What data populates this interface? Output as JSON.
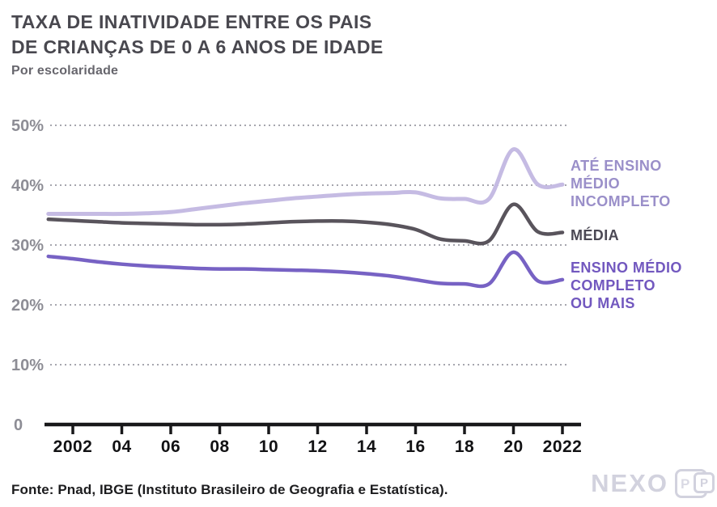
{
  "header": {
    "title": "TAXA DE INATIVIDADE ENTRE OS PAIS\nDE CRIANÇAS DE 0 A 6 ANOS DE IDADE",
    "subtitle": "Por escolaridade"
  },
  "chart_data": {
    "type": "line",
    "x": [
      2001,
      2002,
      2003,
      2004,
      2005,
      2006,
      2007,
      2008,
      2009,
      2010,
      2011,
      2012,
      2013,
      2014,
      2015,
      2016,
      2017,
      2018,
      2019,
      2020,
      2021,
      2022
    ],
    "series": [
      {
        "name": "ATÉ ENSINO MÉDIO INCOMPLETO",
        "color": "#c5bbe3",
        "width": 5,
        "values": [
          35.2,
          35.2,
          35.2,
          35.2,
          35.3,
          35.5,
          36.0,
          36.5,
          37.0,
          37.4,
          37.8,
          38.1,
          38.4,
          38.6,
          38.7,
          38.8,
          37.8,
          37.7,
          37.7,
          46.0,
          40.1,
          40.1
        ]
      },
      {
        "name": "MÉDIA",
        "color": "#59545c",
        "width": 4.5,
        "values": [
          34.3,
          34.1,
          33.9,
          33.7,
          33.6,
          33.5,
          33.4,
          33.4,
          33.5,
          33.7,
          33.9,
          34.0,
          34.0,
          33.8,
          33.4,
          32.6,
          31.0,
          30.7,
          30.7,
          36.8,
          32.2,
          32.1
        ]
      },
      {
        "name": "ENSINO MÉDIO COMPLETO OU MAIS",
        "color": "#7762c4",
        "width": 4.5,
        "values": [
          28.1,
          27.7,
          27.2,
          26.8,
          26.5,
          26.3,
          26.1,
          26.0,
          26.0,
          25.9,
          25.8,
          25.7,
          25.5,
          25.2,
          24.8,
          24.2,
          23.6,
          23.5,
          23.5,
          28.8,
          24.0,
          24.2
        ]
      }
    ],
    "xlim": [
      2001,
      2022
    ],
    "ylim": [
      0,
      50
    ],
    "yticks": [
      {
        "value": 50,
        "label": "50%"
      },
      {
        "value": 40,
        "label": "40%"
      },
      {
        "value": 30,
        "label": "30%"
      },
      {
        "value": 20,
        "label": "20%"
      },
      {
        "value": 10,
        "label": "10%"
      },
      {
        "value": 0,
        "label": "0"
      }
    ],
    "xticks": [
      {
        "value": 2002,
        "label": "2002"
      },
      {
        "value": 2004,
        "label": "04"
      },
      {
        "value": 2006,
        "label": "06"
      },
      {
        "value": 2008,
        "label": "08"
      },
      {
        "value": 2010,
        "label": "10"
      },
      {
        "value": 2012,
        "label": "12"
      },
      {
        "value": 2014,
        "label": "14"
      },
      {
        "value": 2016,
        "label": "16"
      },
      {
        "value": 2018,
        "label": "18"
      },
      {
        "value": 2020,
        "label": "20"
      },
      {
        "value": 2022,
        "label": "2022"
      }
    ],
    "grid": "horizontal-dotted",
    "legend_position": "right"
  },
  "legend": {
    "items": [
      {
        "label": "ATÉ ENSINO\nMÉDIO\nINCOMPLETO",
        "color": "#9a8fc9"
      },
      {
        "label": "MÉDIA",
        "color": "#4b4854"
      },
      {
        "label": "ENSINO MÉDIO\nCOMPLETO\nOU MAIS",
        "color": "#7258bf"
      }
    ]
  },
  "footer": {
    "source": "Fonte: Pnad, IBGE (Instituto Brasileiro de Geografia e Estatística).",
    "brand_wordmark": "NEXO",
    "brand_badge_letter_1": "P",
    "brand_badge_letter_2": "P"
  },
  "colors": {
    "title": "#49484f",
    "subtitle": "#67666d",
    "y_labels": "#8d8d95",
    "x_labels": "#121214",
    "gridline": "#a6a6ae",
    "axis": "#18181a",
    "brand": "#d2d2de",
    "background": "#ffffff"
  }
}
